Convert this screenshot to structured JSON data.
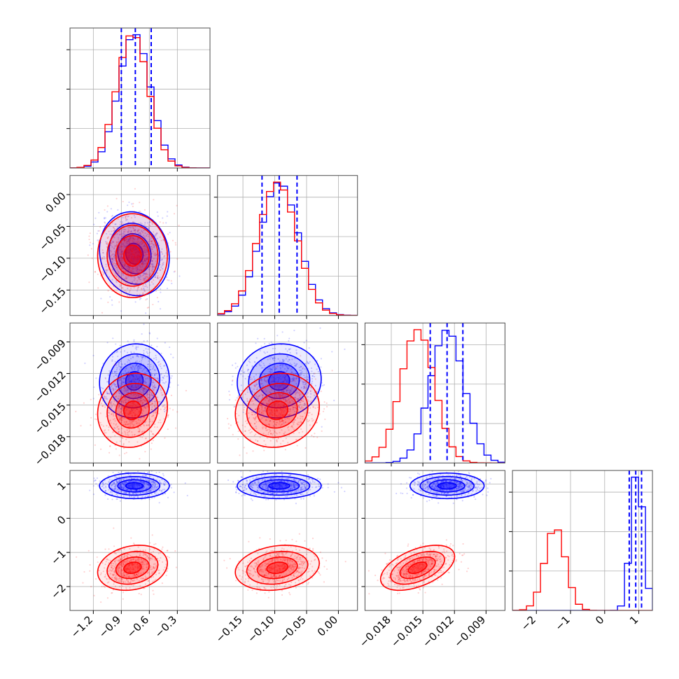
{
  "chart_data": {
    "type": "corner",
    "n_params": 4,
    "grid": true,
    "colors": {
      "series_a": "#0000ff",
      "series_b": "#ff0000"
    },
    "series": [
      {
        "name": "",
        "color": "#0000ff",
        "means": [
          -0.76,
          -0.093,
          -0.0127,
          0.95
        ],
        "sds": [
          0.17,
          0.03,
          0.0016,
          0.17
        ]
      },
      {
        "name": "",
        "color": "#ff0000",
        "means": [
          -0.78,
          -0.096,
          -0.0155,
          -1.45
        ],
        "sds": [
          0.17,
          0.03,
          0.0016,
          0.3
        ]
      }
    ],
    "correlations": {
      "series_a": {
        "1-0": -0.1,
        "2-0": 0.05,
        "2-1": 0.05,
        "3-0": 0.0,
        "3-1": 0.0,
        "3-2": 0.0
      },
      "series_b": {
        "1-0": 0.0,
        "2-0": 0.1,
        "2-1": 0.1,
        "3-0": 0.2,
        "3-1": 0.2,
        "3-2": 0.5
      }
    },
    "quantile_lines": [
      [
        -0.9,
        -0.75,
        -0.58
      ],
      [
        -0.12,
        -0.093,
        -0.065
      ],
      [
        -0.0143,
        -0.0127,
        -0.0112
      ],
      [
        0.72,
        0.91,
        1.08
      ]
    ],
    "axes": [
      {
        "range": [
          -1.45,
          0.05
        ],
        "ticks": [
          -1.2,
          -0.9,
          -0.6,
          -0.3
        ],
        "tick_labels": [
          "−1.2",
          "−0.9",
          "−0.6",
          "−0.3"
        ]
      },
      {
        "range": [
          -0.19,
          0.03
        ],
        "ticks": [
          -0.15,
          -0.1,
          -0.05,
          0.0
        ],
        "tick_labels": [
          "−0.15",
          "−0.10",
          "−0.05",
          "0.00"
        ]
      },
      {
        "range": [
          -0.0205,
          -0.0072
        ],
        "ticks": [
          -0.018,
          -0.015,
          -0.012,
          -0.009
        ],
        "tick_labels": [
          "−0.018",
          "−0.015",
          "−0.012",
          "−0.009"
        ]
      },
      {
        "range": [
          -2.7,
          1.4
        ],
        "ticks": [
          -2,
          -1,
          0,
          1
        ],
        "tick_labels": [
          "−2",
          "−1",
          "0",
          "1"
        ]
      }
    ]
  }
}
